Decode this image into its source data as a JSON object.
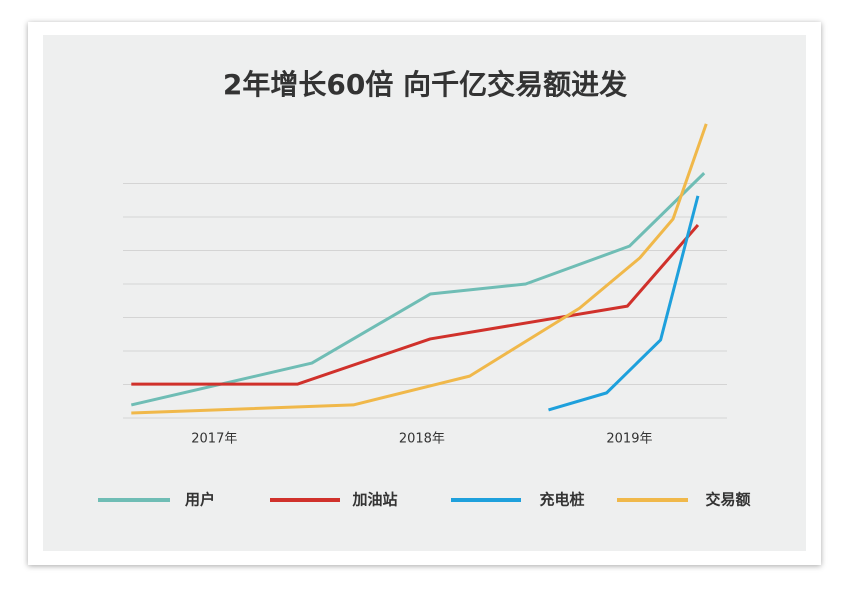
{
  "chart_data": {
    "type": "line",
    "title": "2年增长60倍 向千亿交易额进发",
    "xlim": [
      2016.56,
      2019.47
    ],
    "xticks": [
      {
        "value": 2017,
        "label": "2017年"
      },
      {
        "value": 2018,
        "label": "2018年"
      },
      {
        "value": 2019,
        "label": "2019年"
      }
    ],
    "ylim": [
      0,
      9
    ],
    "yticks": [
      0,
      1,
      2,
      3,
      4,
      5,
      6,
      7
    ],
    "grid": true,
    "ytick_labels": false,
    "legend": "bottom",
    "series": [
      {
        "name": "用户",
        "color": "#6fbdb5",
        "x": [
          2016.6,
          2017.47,
          2018.04,
          2018.5,
          2019.0,
          2019.36
        ],
        "values": [
          0.39,
          1.64,
          3.7,
          4.0,
          5.13,
          7.31
        ]
      },
      {
        "name": "加油站",
        "color": "#d0312b",
        "x": [
          2016.6,
          2017.4,
          2018.04,
          2018.99,
          2019.33
        ],
        "values": [
          1.01,
          1.01,
          2.36,
          3.34,
          5.76
        ]
      },
      {
        "name": "充电桩",
        "color": "#1ea0dc",
        "x": [
          2018.61,
          2018.89,
          2019.15,
          2019.33
        ],
        "values": [
          0.24,
          0.75,
          2.33,
          6.63
        ]
      },
      {
        "name": "交易额",
        "color": "#f0b84a",
        "x": [
          2016.6,
          2017.67,
          2018.23,
          2018.76,
          2019.05,
          2019.21,
          2019.37
        ],
        "values": [
          0.15,
          0.39,
          1.25,
          3.28,
          4.78,
          5.94,
          8.78
        ]
      }
    ]
  }
}
